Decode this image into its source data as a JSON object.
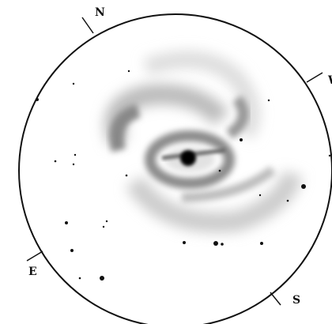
{
  "labels": {
    "north": "N",
    "east": "E",
    "south": "S",
    "west": "W"
  }
}
